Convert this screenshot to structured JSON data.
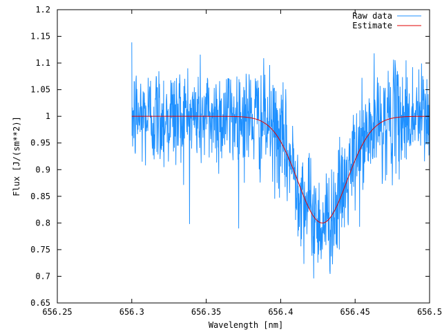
{
  "chart_data": {
    "type": "line",
    "title": "",
    "xlabel": "Wavelength [nm]",
    "ylabel": "Flux [J/(sm**2)]",
    "xlim": [
      656.25,
      656.5
    ],
    "ylim": [
      0.65,
      1.2
    ],
    "x_ticks": [
      656.25,
      656.3,
      656.35,
      656.4,
      656.45,
      656.5
    ],
    "x_tick_labels": [
      "656.25",
      "656.3",
      "656.35",
      "656.4",
      "656.45",
      "656.5"
    ],
    "y_ticks": [
      0.65,
      0.7,
      0.75,
      0.8,
      0.85,
      0.9,
      0.95,
      1,
      1.05,
      1.1,
      1.15,
      1.2
    ],
    "y_tick_labels": [
      "0.65",
      "0.7",
      "0.75",
      "0.8",
      "0.85",
      "0.9",
      "0.95",
      "1",
      "1.05",
      "1.1",
      "1.15",
      "1.2"
    ],
    "grid": false,
    "legend_position": "top-right",
    "series": [
      {
        "name": "Raw data",
        "color": "#1e90ff",
        "x_start": 656.3,
        "x_end": 656.5,
        "x_step": 0.0002,
        "continuum": 1.0,
        "noise_sigma": 0.05,
        "line_center": 656.428,
        "line_depth": 0.2,
        "line_sigma": 0.0165,
        "y_min_observed": 0.68,
        "y_max_observed": 1.17
      },
      {
        "name": "Estimate",
        "color": "#e00000",
        "x_start": 656.3,
        "x_end": 656.5,
        "continuum": 1.0,
        "line_center": 656.428,
        "line_depth": 0.2,
        "line_sigma": 0.0165
      }
    ]
  }
}
